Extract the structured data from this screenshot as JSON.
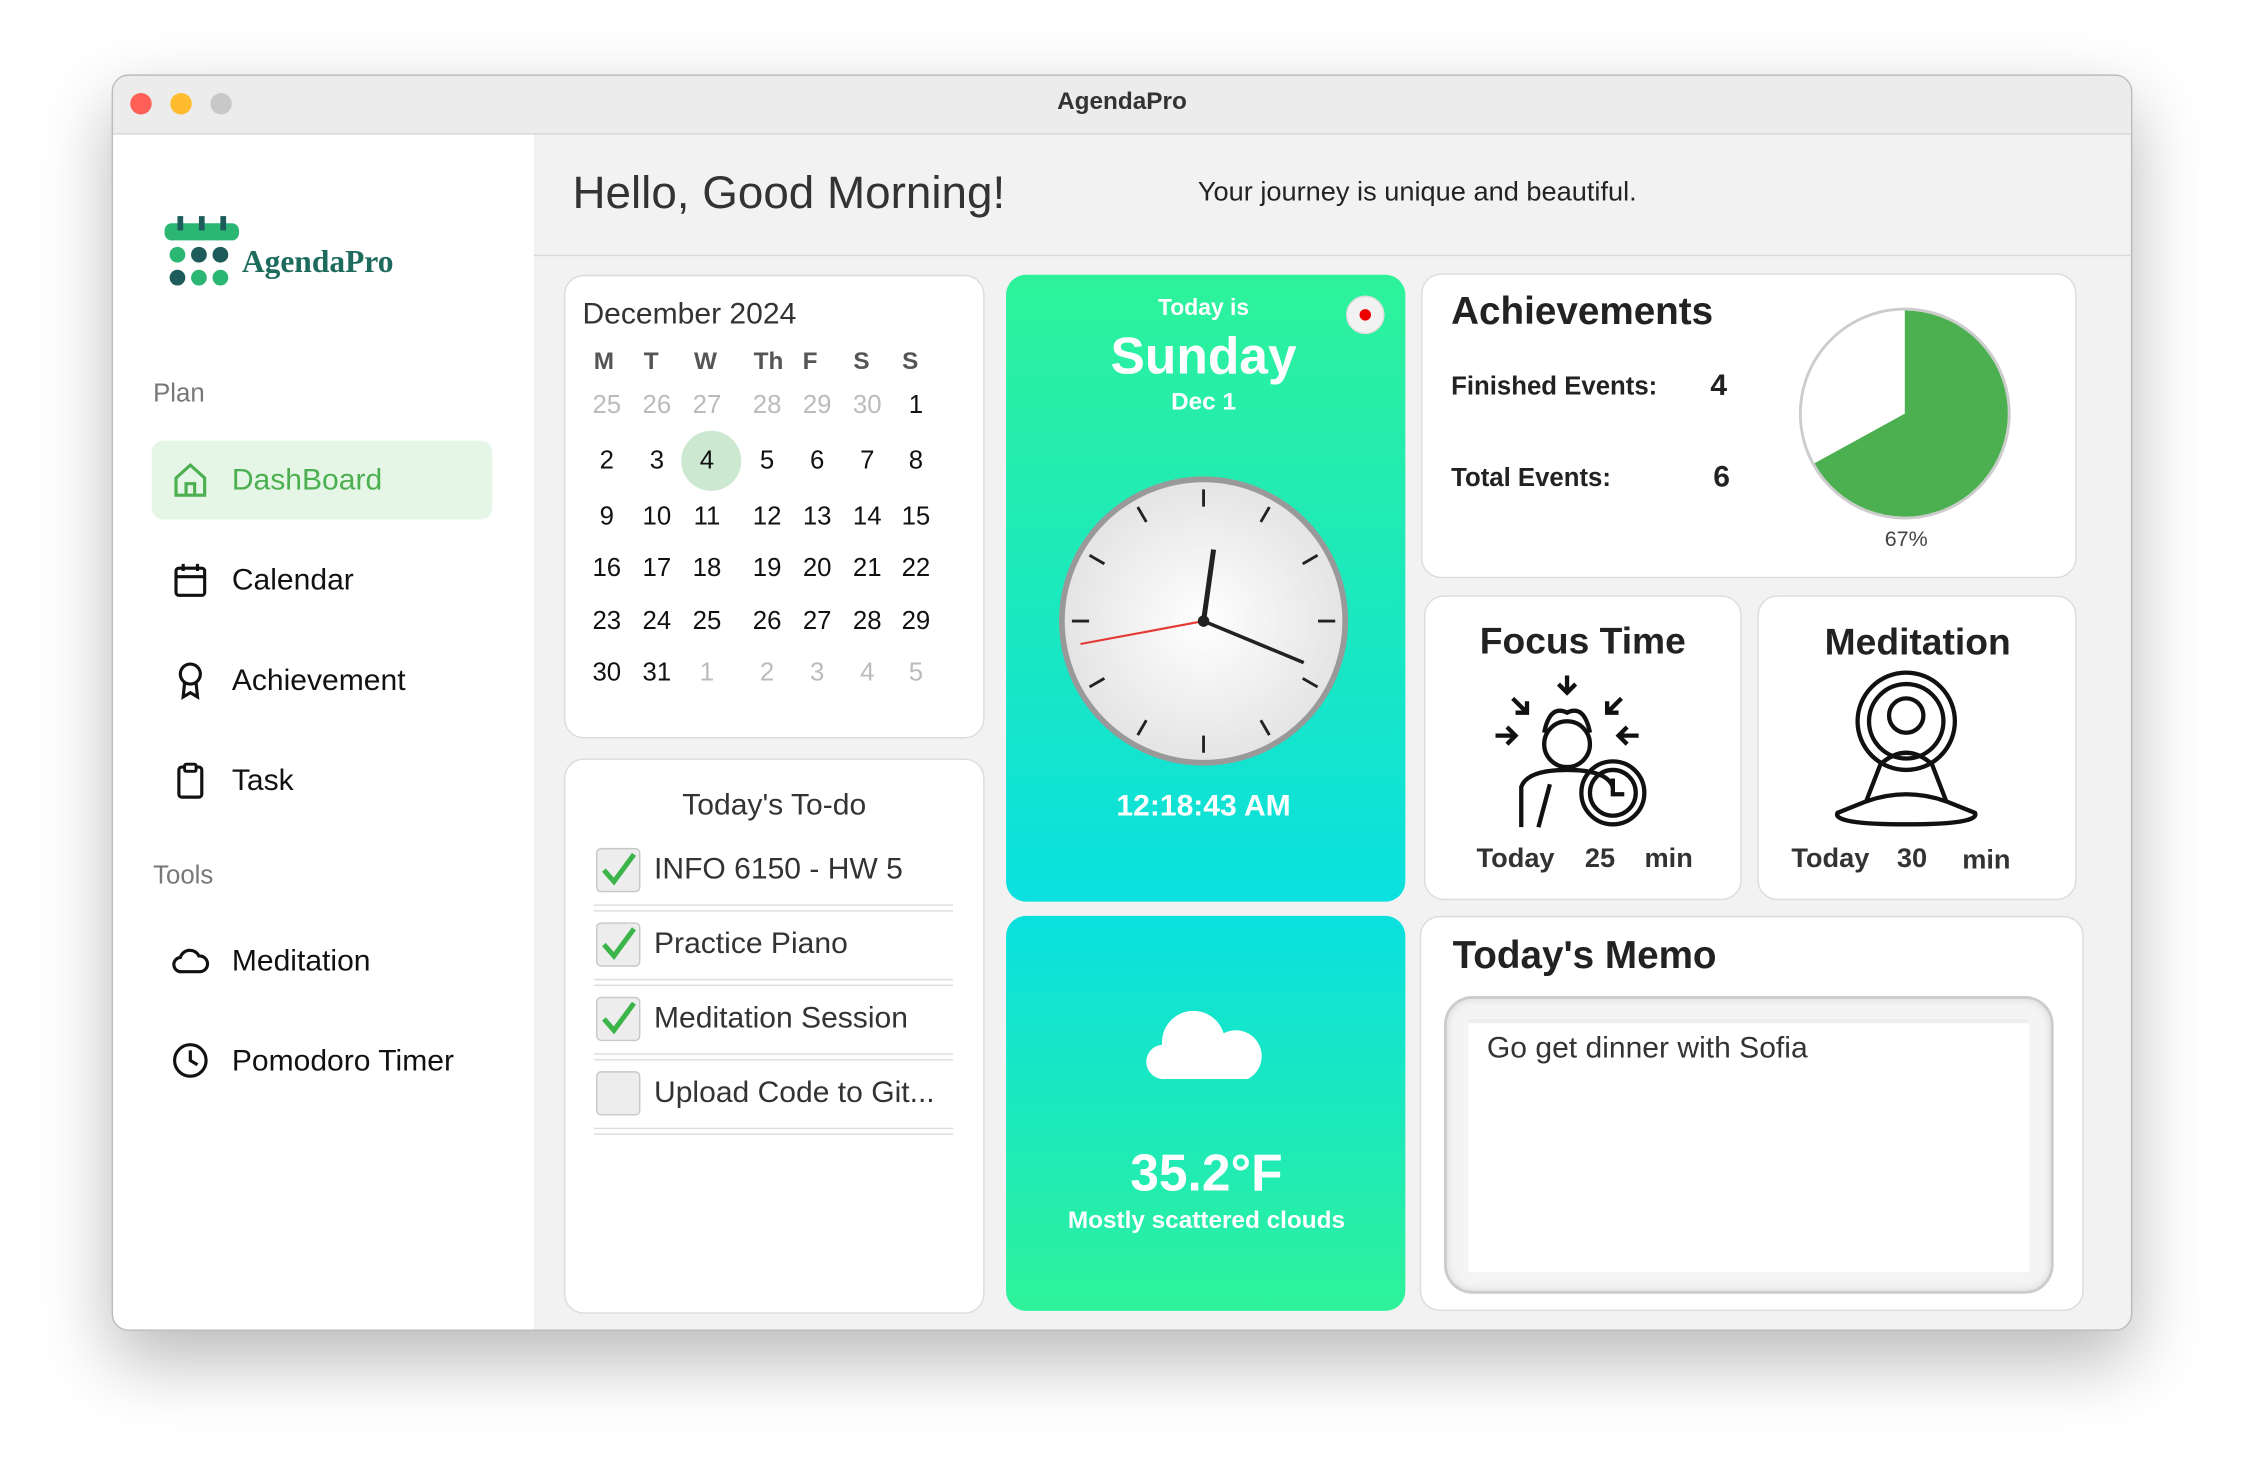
{
  "window": {
    "title": "AgendaPro"
  },
  "sidebar": {
    "logo": "AgendaPro",
    "sections": [
      {
        "label": "Plan",
        "items": [
          "DashBoard",
          "Calendar",
          "Achievement",
          "Task"
        ]
      },
      {
        "label": "Tools",
        "items": [
          "Meditation",
          "Pomodoro Timer"
        ]
      }
    ]
  },
  "header": {
    "greeting": "Hello, Good Morning!",
    "tagline": "Your journey is unique and beautiful."
  },
  "calendar": {
    "month": "December 2024",
    "weekdays": [
      "M",
      "T",
      "W",
      "Th",
      "F",
      "S",
      "S"
    ],
    "weeks": [
      [
        25,
        26,
        27,
        28,
        29,
        30,
        1
      ],
      [
        2,
        3,
        4,
        5,
        6,
        7,
        8
      ],
      [
        9,
        10,
        11,
        12,
        13,
        14,
        15
      ],
      [
        16,
        17,
        18,
        19,
        20,
        21,
        22
      ],
      [
        23,
        24,
        25,
        26,
        27,
        28,
        29
      ],
      [
        30,
        31,
        1,
        2,
        3,
        4,
        5
      ]
    ]
  },
  "todo": {
    "title": "Today's To-do",
    "items": [
      {
        "text": "INFO 6150 - HW 5",
        "checked": true
      },
      {
        "text": "Practice Piano",
        "checked": true
      },
      {
        "text": "Meditation Session",
        "checked": true
      },
      {
        "text": "Upload Code to Git...",
        "checked": false
      }
    ]
  },
  "today": {
    "label": "Today is",
    "day": "Sunday",
    "date": "Dec 1",
    "time": "12:18:43 AM"
  },
  "weather": {
    "temperature": "35.2°F",
    "description": "Mostly scattered clouds"
  },
  "achievements": {
    "title": "Achievements",
    "finished_label": "Finished Events:",
    "finished": 4,
    "total_label": "Total Events:",
    "total": 6,
    "percent": 67,
    "percent_label": "67%"
  },
  "focus": {
    "title": "Focus Time",
    "today": "Today",
    "minutes": 25,
    "unit": "min"
  },
  "meditation": {
    "title": "Meditation",
    "today": "Today",
    "minutes": 30,
    "unit": "min"
  },
  "memo": {
    "title": "Today's Memo",
    "text": "Go get dinner with Sofia"
  }
}
